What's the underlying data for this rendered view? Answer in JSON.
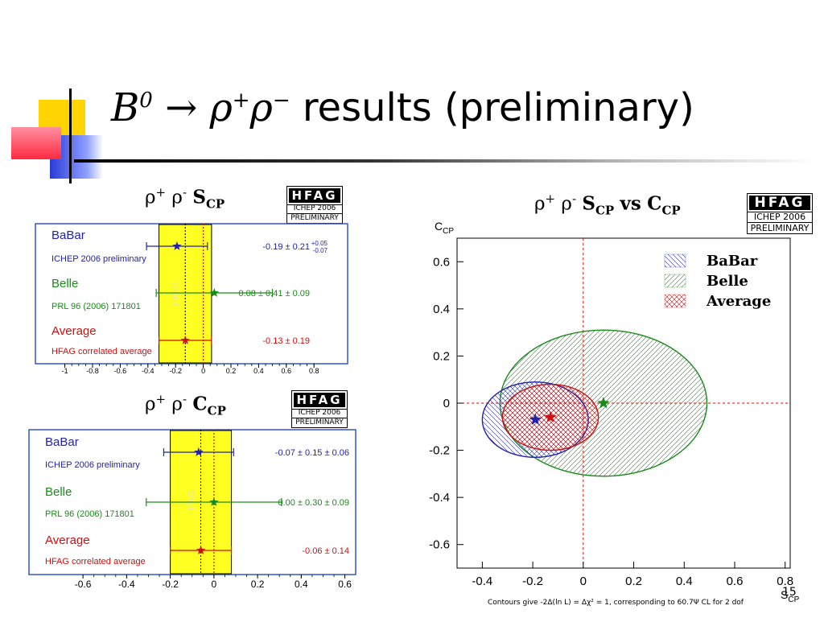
{
  "slide": {
    "title_formula": {
      "base": "B",
      "sup0": "0",
      "arrow": "→",
      "rho": "ρ",
      "plus": "+",
      "minus": "−"
    },
    "title_text": "results (preliminary)",
    "page_number": "15"
  },
  "badge": {
    "name": "HFAG",
    "event": "ICHEP 2006",
    "status": "PRELIMINARY"
  },
  "colors": {
    "babar": "#2222aa",
    "belle": "#1a8a1a",
    "average": "#cc1111",
    "band": "#ffff22"
  },
  "chart_data": [
    {
      "type": "error-bar",
      "title": {
        "rho": "ρ",
        "p": "+",
        "m": "-",
        "s": "S",
        "sub": "CP"
      },
      "xlim": [
        -1.05,
        0.95
      ],
      "xticks": [
        -1,
        -0.8,
        -0.6,
        -0.4,
        -0.2,
        0,
        0.2,
        0.4,
        0.6,
        0.8
      ],
      "band": {
        "center": -0.13,
        "err": 0.19
      },
      "band_label": "HFAG",
      "entries": [
        {
          "name": "BaBar",
          "ref": "ICHEP 2006 preliminary",
          "value": -0.19,
          "err_lo": 0.22,
          "err_hi": 0.22,
          "label": "-0.19 ± 0.21",
          "asym_up": "+0.05",
          "asym_dn": "-0.07",
          "color": "#2222aa"
        },
        {
          "name": "Belle",
          "ref": "PRL 96 (2006) 171801",
          "value": 0.08,
          "err_lo": 0.42,
          "err_hi": 0.42,
          "label": "0.08 ± 0.41 ± 0.09",
          "asym_up": "",
          "asym_dn": "",
          "color": "#1a8a1a"
        },
        {
          "name": "Average",
          "ref": "HFAG correlated average",
          "value": -0.13,
          "err_lo": 0.19,
          "err_hi": 0.19,
          "label": "-0.13 ± 0.19",
          "asym_up": "",
          "asym_dn": "",
          "color": "#cc1111"
        }
      ]
    },
    {
      "type": "error-bar",
      "title": {
        "rho": "ρ",
        "p": "+",
        "m": "-",
        "s": "C",
        "sub": "CP"
      },
      "xlim": [
        -0.7,
        0.62
      ],
      "xticks": [
        -0.6,
        -0.4,
        -0.2,
        0,
        0.2,
        0.4,
        0.6
      ],
      "band": {
        "center": -0.06,
        "err": 0.14
      },
      "band_label": "HFAG",
      "entries": [
        {
          "name": "BaBar",
          "ref": "ICHEP 2006 preliminary",
          "value": -0.07,
          "err_lo": 0.16,
          "err_hi": 0.16,
          "label": "-0.07 ± 0.15 ± 0.06",
          "asym_up": "",
          "asym_dn": "",
          "color": "#2222aa"
        },
        {
          "name": "Belle",
          "ref": "PRL 96 (2006) 171801",
          "value": 0.0,
          "err_lo": 0.31,
          "err_hi": 0.31,
          "label": "0.00 ± 0.30 ± 0.09",
          "asym_up": "",
          "asym_dn": "",
          "color": "#1a8a1a"
        },
        {
          "name": "Average",
          "ref": "HFAG correlated average",
          "value": -0.06,
          "err_lo": 0.14,
          "err_hi": 0.14,
          "label": "-0.06 ± 0.14",
          "asym_up": "",
          "asym_dn": "",
          "color": "#cc1111"
        }
      ]
    },
    {
      "type": "scatter-contour",
      "title": {
        "rho": "ρ",
        "p": "+",
        "m": "-",
        "s": "S",
        "sub": "CP",
        "vs": "vs",
        "c": "C",
        "csub": "CP"
      },
      "xlabel": {
        "main": "S",
        "sub": "CP"
      },
      "ylabel": {
        "main": "C",
        "sub": "CP"
      },
      "xlim": [
        -0.5,
        0.82
      ],
      "ylim": [
        -0.7,
        0.7
      ],
      "xticks": [
        -0.4,
        -0.2,
        0,
        0.2,
        0.4,
        0.6,
        0.8
      ],
      "yticks": [
        -0.6,
        -0.4,
        -0.2,
        0,
        0.2,
        0.4,
        0.6
      ],
      "legend": [
        "BaBar",
        "Belle",
        "Average"
      ],
      "legend_position": "top-right",
      "series": [
        {
          "name": "BaBar",
          "center": [
            -0.19,
            -0.07
          ],
          "radii": [
            0.21,
            0.16
          ],
          "color": "#2222aa",
          "hatch": "diag-left"
        },
        {
          "name": "Belle",
          "center": [
            0.08,
            0.0
          ],
          "radii": [
            0.41,
            0.31
          ],
          "color": "#1a8a1a",
          "hatch": "diag-right"
        },
        {
          "name": "Average",
          "center": [
            -0.13,
            -0.06
          ],
          "radii": [
            0.19,
            0.14
          ],
          "color": "#cc1111",
          "hatch": "cross"
        }
      ],
      "footnote": "Contours give -2Δ(ln L) = Δχ² = 1, corresponding to 60.7Ψ CL for 2 dof"
    }
  ]
}
